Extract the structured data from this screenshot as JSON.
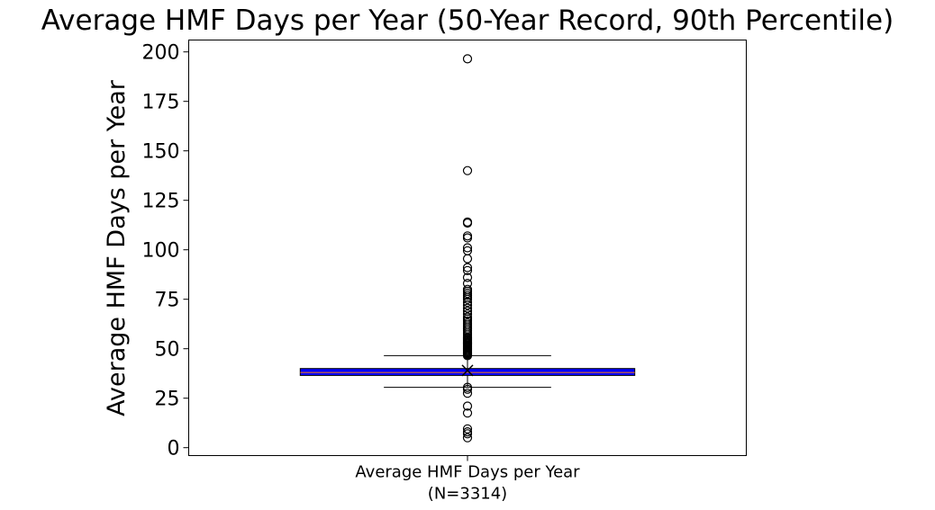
{
  "chart_data": {
    "type": "box",
    "title": "Average HMF Days per Year (50-Year Record, 90th Percentile)",
    "xlabel": "",
    "ylabel": "Average HMF Days per Year",
    "categories": [
      "Average HMF Days per Year\n(N=3314)"
    ],
    "ylim": [
      -4,
      206
    ],
    "yticks": [
      0,
      25,
      50,
      75,
      100,
      125,
      150,
      175,
      200
    ],
    "grid": false,
    "box_color": "#0000ff",
    "boxes": [
      {
        "category": "Average HMF Days per Year\n(N=3314)",
        "n": 3314,
        "whisker_low": 30.5,
        "q1": 36.5,
        "median": 38,
        "mean": 39,
        "q3": 40,
        "whisker_high": 46.5,
        "outliers": [
          5,
          7,
          8,
          9.5,
          17.5,
          21,
          27.5,
          29.5,
          30.5,
          46.5,
          47,
          47.5,
          48,
          48.5,
          49,
          49.5,
          50,
          50.5,
          51,
          51.5,
          52,
          52.5,
          53,
          53.5,
          54,
          54.5,
          55,
          55.5,
          56,
          57,
          58,
          59,
          60,
          61,
          62,
          63,
          64,
          65,
          66,
          67.5,
          69,
          70.5,
          72,
          73.5,
          75,
          76,
          77,
          78,
          79,
          80,
          83,
          86,
          89.5,
          91,
          95.5,
          99.5,
          101,
          106,
          107,
          113.5,
          114,
          140,
          196.5
        ]
      }
    ]
  }
}
